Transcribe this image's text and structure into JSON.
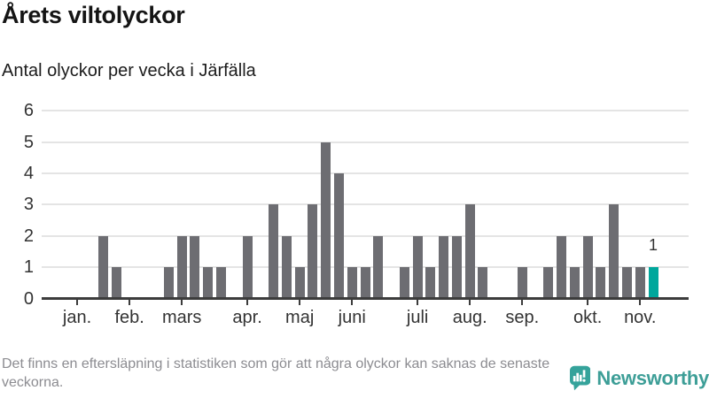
{
  "header": {
    "title": "Årets viltolyckor",
    "subtitle": "Antal olyckor per vecka i Järfälla"
  },
  "chart_data": {
    "type": "bar",
    "title": "Årets viltolyckor",
    "subtitle": "Antal olyckor per vecka i Järfälla",
    "x_unit": "vecka",
    "values": [
      0,
      0,
      0,
      0,
      2,
      1,
      0,
      0,
      0,
      1,
      2,
      2,
      1,
      1,
      0,
      2,
      0,
      3,
      2,
      1,
      3,
      5,
      4,
      1,
      1,
      2,
      0,
      1,
      2,
      1,
      2,
      2,
      3,
      1,
      0,
      0,
      1,
      0,
      1,
      2,
      1,
      2,
      1,
      3,
      1,
      1,
      1
    ],
    "month_ticks": [
      {
        "label": "jan.",
        "week": 3
      },
      {
        "label": "feb.",
        "week": 7
      },
      {
        "label": "mars",
        "week": 11
      },
      {
        "label": "apr.",
        "week": 16
      },
      {
        "label": "maj",
        "week": 20
      },
      {
        "label": "juni",
        "week": 24
      },
      {
        "label": "juli",
        "week": 29
      },
      {
        "label": "aug.",
        "week": 33
      },
      {
        "label": "sep.",
        "week": 37
      },
      {
        "label": "okt.",
        "week": 42
      },
      {
        "label": "nov.",
        "week": 46
      }
    ],
    "y_ticks": [
      0,
      1,
      2,
      3,
      4,
      5,
      6
    ],
    "ylim": [
      0,
      6
    ],
    "grid": true,
    "legend": "none",
    "highlight_last_bar": true,
    "last_bar_label": "1",
    "colors": {
      "bar": "#6d6d72",
      "highlight": "#00a79c",
      "grid": "#e4e4e4",
      "axis": "#3c3c3c",
      "axis_text": "#333333",
      "value_label": "#333333"
    }
  },
  "footer": {
    "note": "Det finns en eftersläpning i statistiken som gör att några olyckor kan saknas de senaste veckorna.",
    "brand": "Newsworthy",
    "brand_color": "#3d9e97"
  }
}
